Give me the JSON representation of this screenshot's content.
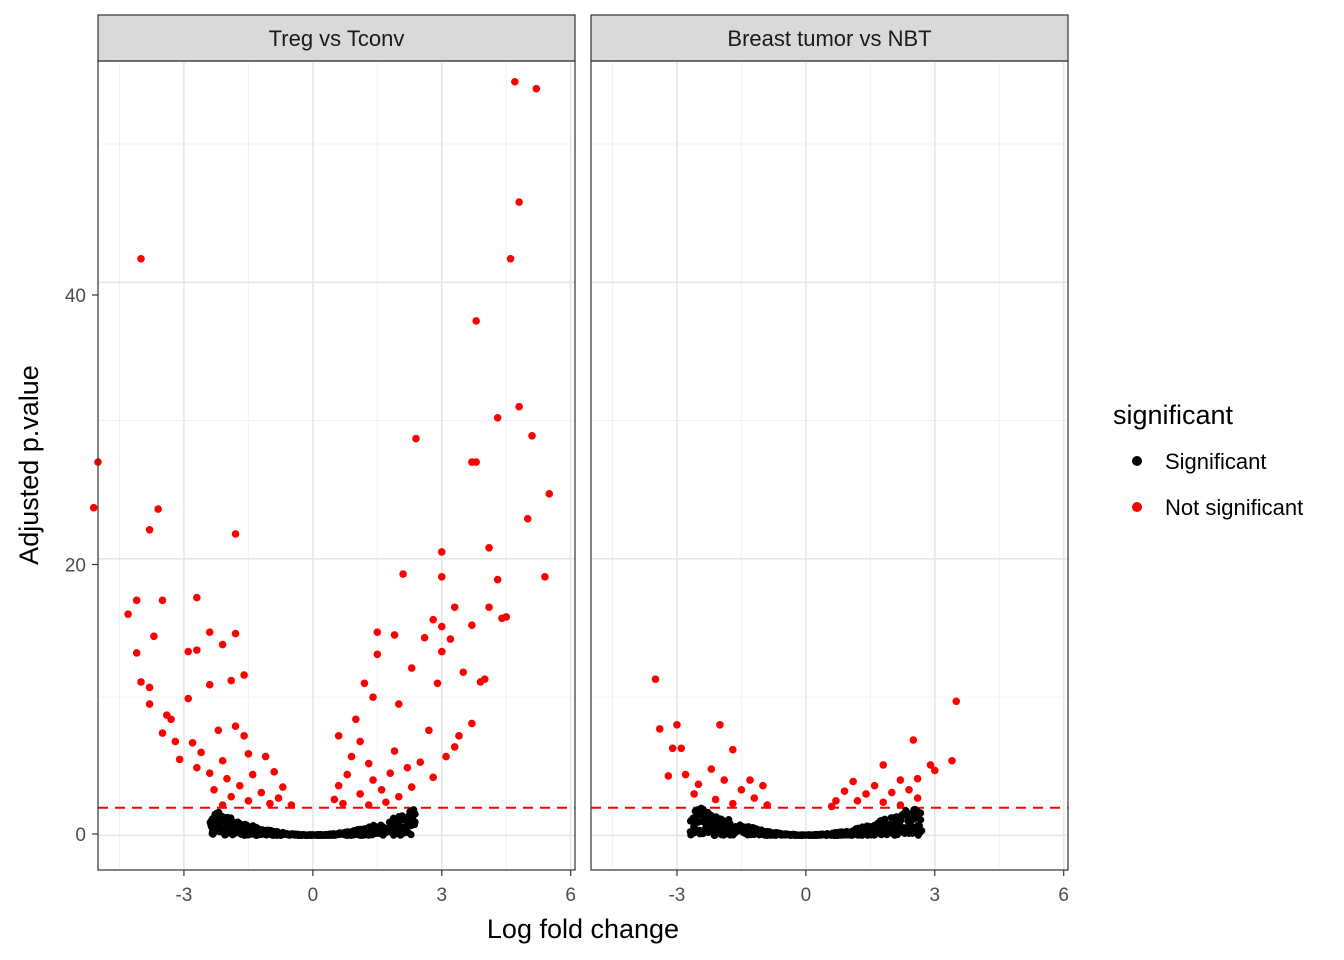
{
  "chart_data": {
    "type": "scatter",
    "xlabel": "Log fold change",
    "ylabel": "Adjusted p.value",
    "xlim": [
      -5.0,
      6.1
    ],
    "ylim": [
      -2.5,
      56.0
    ],
    "x_ticks": [
      -3,
      0,
      3,
      6
    ],
    "x_tick_labels": [
      "-3",
      "0",
      "3",
      "6"
    ],
    "y_ticks": [
      0,
      20,
      40
    ],
    "y_tick_labels": [
      "0",
      "20",
      "40"
    ],
    "threshold_y": 2,
    "grid": true,
    "legend": {
      "title": "significant",
      "position": "right",
      "entries": [
        {
          "label": "Significant",
          "color": "#000000"
        },
        {
          "label": "Not significant",
          "color": "#ff0000"
        }
      ]
    },
    "colors": {
      "significant": "#000000",
      "not_significant": "#ff0000",
      "threshold": "#ff0000",
      "strip_fill": "#d9d9d9"
    },
    "panels": [
      {
        "title": "Treg vs Tconv",
        "not_significant_points": [
          [
            4.7,
            54.5
          ],
          [
            5.2,
            54.0
          ],
          [
            4.8,
            45.8
          ],
          [
            -4.0,
            41.7
          ],
          [
            4.6,
            41.7
          ],
          [
            3.8,
            37.2
          ],
          [
            4.8,
            31.0
          ],
          [
            4.3,
            30.2
          ],
          [
            5.1,
            28.9
          ],
          [
            2.4,
            28.7
          ],
          [
            -5.0,
            27.0
          ],
          [
            3.7,
            27.0
          ],
          [
            3.8,
            27.0
          ],
          [
            5.5,
            24.7
          ],
          [
            -5.1,
            23.7
          ],
          [
            -3.6,
            23.6
          ],
          [
            5.0,
            22.9
          ],
          [
            -3.8,
            22.1
          ],
          [
            -1.8,
            21.8
          ],
          [
            4.1,
            20.8
          ],
          [
            3.0,
            20.5
          ],
          [
            2.1,
            18.9
          ],
          [
            3.0,
            18.7
          ],
          [
            4.3,
            18.5
          ],
          [
            5.4,
            18.7
          ],
          [
            -4.1,
            17.0
          ],
          [
            -3.5,
            17.0
          ],
          [
            -2.7,
            17.2
          ],
          [
            3.3,
            16.5
          ],
          [
            4.1,
            16.5
          ],
          [
            -4.3,
            16.0
          ],
          [
            4.4,
            15.7
          ],
          [
            4.5,
            15.8
          ],
          [
            2.8,
            15.6
          ],
          [
            3.7,
            15.2
          ],
          [
            3.0,
            15.1
          ],
          [
            -3.7,
            14.4
          ],
          [
            -2.4,
            14.7
          ],
          [
            -1.8,
            14.6
          ],
          [
            1.5,
            14.7
          ],
          [
            1.9,
            14.5
          ],
          [
            2.6,
            14.3
          ],
          [
            3.2,
            14.2
          ],
          [
            -2.1,
            13.8
          ],
          [
            -4.1,
            13.2
          ],
          [
            -2.7,
            13.4
          ],
          [
            1.5,
            13.1
          ],
          [
            3.0,
            13.3
          ],
          [
            -2.9,
            13.3
          ],
          [
            2.3,
            12.1
          ],
          [
            4.0,
            11.3
          ],
          [
            -4.0,
            11.1
          ],
          [
            -3.8,
            10.7
          ],
          [
            -1.6,
            11.6
          ],
          [
            2.9,
            11.0
          ],
          [
            3.5,
            11.8
          ],
          [
            1.2,
            11.0
          ],
          [
            -3.8,
            9.5
          ],
          [
            -2.4,
            10.9
          ],
          [
            -1.9,
            11.2
          ],
          [
            3.9,
            11.1
          ],
          [
            -3.4,
            8.7
          ],
          [
            1.4,
            10.0
          ],
          [
            -2.9,
            9.9
          ],
          [
            2.0,
            9.5
          ],
          [
            3.7,
            8.1
          ],
          [
            -3.3,
            8.4
          ],
          [
            -3.5,
            7.4
          ],
          [
            -1.8,
            7.9
          ],
          [
            1.0,
            8.4
          ],
          [
            3.4,
            7.2
          ],
          [
            -2.2,
            7.6
          ],
          [
            2.7,
            7.6
          ],
          [
            -3.2,
            6.8
          ],
          [
            0.6,
            7.2
          ],
          [
            3.3,
            6.4
          ],
          [
            -1.6,
            7.2
          ],
          [
            -2.8,
            6.7
          ],
          [
            1.1,
            6.8
          ],
          [
            3.1,
            5.7
          ],
          [
            -2.6,
            6.0
          ],
          [
            1.9,
            6.1
          ],
          [
            -3.1,
            5.5
          ],
          [
            -2.1,
            5.4
          ],
          [
            -1.5,
            5.9
          ],
          [
            0.9,
            5.7
          ],
          [
            2.5,
            5.3
          ],
          [
            -2.7,
            4.9
          ],
          [
            -1.1,
            5.7
          ],
          [
            1.3,
            5.2
          ],
          [
            2.2,
            4.9
          ],
          [
            -2.4,
            4.5
          ],
          [
            -0.9,
            4.6
          ],
          [
            0.8,
            4.4
          ],
          [
            1.8,
            4.5
          ],
          [
            -2.0,
            4.1
          ],
          [
            -1.4,
            4.4
          ],
          [
            1.4,
            4.0
          ],
          [
            2.8,
            4.2
          ],
          [
            -1.7,
            3.6
          ],
          [
            -0.7,
            3.5
          ],
          [
            0.6,
            3.6
          ],
          [
            1.6,
            3.3
          ],
          [
            2.3,
            3.5
          ],
          [
            -2.3,
            3.3
          ],
          [
            -1.2,
            3.1
          ],
          [
            1.1,
            3.0
          ],
          [
            -1.9,
            2.8
          ],
          [
            -0.8,
            2.7
          ],
          [
            0.5,
            2.6
          ],
          [
            2.0,
            2.8
          ],
          [
            -1.5,
            2.5
          ],
          [
            -0.5,
            2.2
          ],
          [
            0.7,
            2.3
          ],
          [
            1.7,
            2.4
          ],
          [
            -2.1,
            2.2
          ],
          [
            -1.0,
            2.3
          ],
          [
            1.3,
            2.2
          ]
        ]
      },
      {
        "title": "Breast tumor vs NBT",
        "not_significant_points": [
          [
            -3.5,
            11.3
          ],
          [
            3.5,
            9.7
          ],
          [
            -2.0,
            8.0
          ],
          [
            -3.4,
            7.7
          ],
          [
            -3.0,
            8.0
          ],
          [
            2.5,
            6.9
          ],
          [
            -3.1,
            6.3
          ],
          [
            -2.9,
            6.3
          ],
          [
            -1.7,
            6.2
          ],
          [
            3.4,
            5.4
          ],
          [
            -3.2,
            4.3
          ],
          [
            -2.2,
            4.8
          ],
          [
            2.9,
            5.1
          ],
          [
            3.0,
            4.7
          ],
          [
            -2.8,
            4.4
          ],
          [
            -1.3,
            4.0
          ],
          [
            1.8,
            5.1
          ],
          [
            1.1,
            3.9
          ],
          [
            2.2,
            4.0
          ],
          [
            2.6,
            4.1
          ],
          [
            -2.5,
            3.7
          ],
          [
            -1.9,
            4.0
          ],
          [
            -1.0,
            3.6
          ],
          [
            0.9,
            3.2
          ],
          [
            1.6,
            3.6
          ],
          [
            2.4,
            3.3
          ],
          [
            -2.6,
            3.0
          ],
          [
            -1.5,
            3.3
          ],
          [
            1.4,
            3.0
          ],
          [
            2.0,
            3.1
          ],
          [
            -2.1,
            2.6
          ],
          [
            -1.2,
            2.7
          ],
          [
            0.7,
            2.5
          ],
          [
            1.2,
            2.5
          ],
          [
            2.6,
            2.7
          ],
          [
            -1.7,
            2.3
          ],
          [
            -0.9,
            2.2
          ],
          [
            0.6,
            2.1
          ],
          [
            1.8,
            2.4
          ],
          [
            2.2,
            2.2
          ]
        ]
      }
    ]
  }
}
